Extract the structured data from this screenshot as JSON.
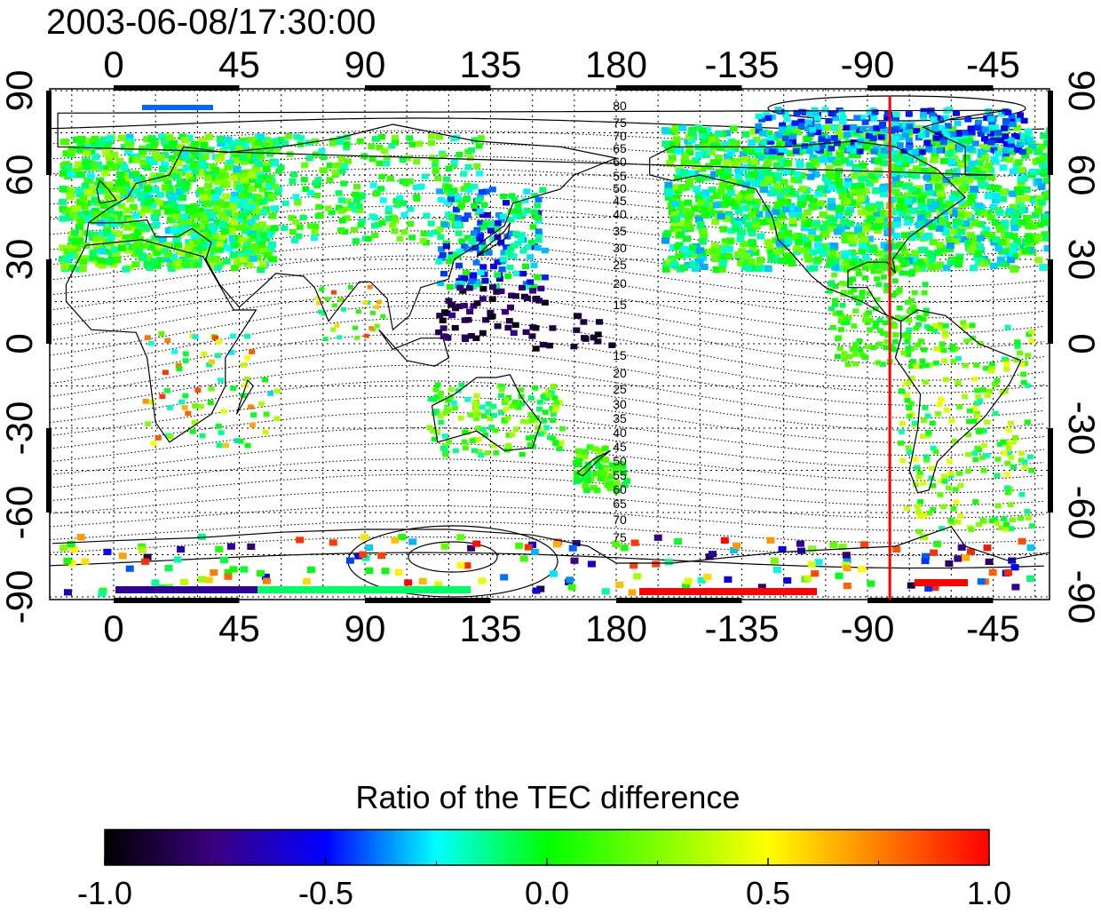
{
  "timestamp": "2003-06-08/17:30:00",
  "map": {
    "x_ticks": [
      "0",
      "45",
      "90",
      "135",
      "180",
      "-135",
      "-90",
      "-45"
    ],
    "y_ticks": [
      "90",
      "60",
      "30",
      "0",
      "-30",
      "-60",
      "-90"
    ],
    "red_line_longitude": -82,
    "magnetic_latitude_labels_north": [
      "80",
      "75",
      "70",
      "65",
      "60",
      "55",
      "50",
      "45",
      "40",
      "35",
      "30",
      "25",
      "20",
      "15"
    ],
    "magnetic_latitude_labels_south": [
      "15",
      "20",
      "25",
      "30",
      "35",
      "40",
      "45",
      "50",
      "55",
      "60",
      "65",
      "70",
      "75"
    ]
  },
  "colorbar": {
    "title": "Ratio of the TEC difference",
    "min": -1.0,
    "max": 1.0,
    "tick_labels": [
      "-1.0",
      "-0.5",
      "0.0",
      "0.5",
      "1.0"
    ],
    "colors": [
      "#000000",
      "#3a0080",
      "#0000ff",
      "#00ffff",
      "#00ff00",
      "#ffff00",
      "#ff8000",
      "#ff0000"
    ]
  }
}
